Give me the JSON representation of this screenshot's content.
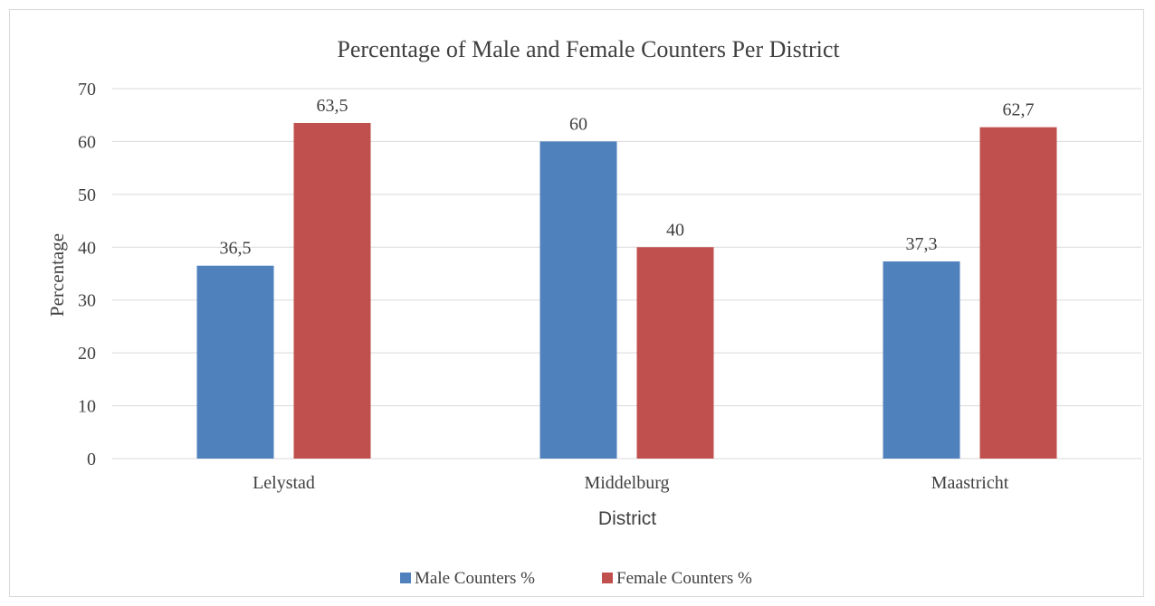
{
  "chart_data": {
    "type": "bar",
    "title": "Percentage of Male and Female Counters Per District",
    "xlabel": "District",
    "ylabel": "Percentage",
    "categories": [
      "Lelystad",
      "Middelburg",
      "Maastricht"
    ],
    "series": [
      {
        "name": "Male Counters %",
        "color": "#4f81bd",
        "values": [
          36.5,
          60,
          37.3
        ],
        "labels": [
          "36,5",
          "60",
          "37,3"
        ]
      },
      {
        "name": "Female Counters %",
        "color": "#c0504d",
        "values": [
          63.5,
          40,
          62.7
        ],
        "labels": [
          "63,5",
          "40",
          "62,7"
        ]
      }
    ],
    "ylim": [
      0,
      70
    ],
    "yticks": [
      0,
      10,
      20,
      30,
      40,
      50,
      60,
      70
    ],
    "grid": true,
    "legend": "bottom"
  }
}
